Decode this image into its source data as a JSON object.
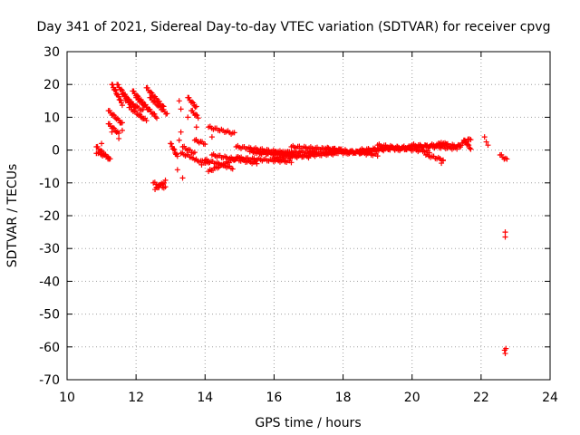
{
  "chart_data": {
    "type": "scatter",
    "title": "Day 341 of 2021, Sidereal Day-to-day VTEC variation (SDTVAR) for receiver cpvg",
    "xlabel": "GPS time / hours",
    "ylabel": "SDTVAR / TECUs",
    "xlim": [
      10,
      24
    ],
    "ylim": [
      -70,
      30
    ],
    "xticks": [
      10,
      12,
      14,
      16,
      18,
      20,
      22,
      24
    ],
    "yticks": [
      -70,
      -60,
      -50,
      -40,
      -30,
      -20,
      -10,
      0,
      10,
      20,
      30
    ],
    "grid": true,
    "marker": "plus",
    "color": "#ff0000",
    "series": [
      {
        "name": "cpvg",
        "segments": [
          {
            "x": [
              10.85,
              11.25
            ],
            "y": [
              1.0,
              -3.0
            ]
          },
          {
            "x": [
              10.9,
              11.2
            ],
            "y": [
              -1.0,
              -2.0
            ]
          },
          {
            "x": [
              11.2,
              11.6
            ],
            "y": [
              12.0,
              8.0
            ]
          },
          {
            "x": [
              11.2,
              11.5
            ],
            "y": [
              8.0,
              5.0
            ]
          },
          {
            "x": [
              11.3,
              11.6
            ],
            "y": [
              20.0,
              14.0
            ]
          },
          {
            "x": [
              11.45,
              11.8
            ],
            "y": [
              20.0,
              15.0
            ]
          },
          {
            "x": [
              11.6,
              12.0
            ],
            "y": [
              17.0,
              13.0
            ]
          },
          {
            "x": [
              11.7,
              12.2
            ],
            "y": [
              15.0,
              12.0
            ]
          },
          {
            "x": [
              11.8,
              12.3
            ],
            "y": [
              13.0,
              9.0
            ]
          },
          {
            "x": [
              11.9,
              12.4
            ],
            "y": [
              18.0,
              12.0
            ]
          },
          {
            "x": [
              12.0,
              12.6
            ],
            "y": [
              16.0,
              10.0
            ]
          },
          {
            "x": [
              12.3,
              12.8
            ],
            "y": [
              19.0,
              13.0
            ]
          },
          {
            "x": [
              12.4,
              12.9
            ],
            "y": [
              16.0,
              11.0
            ]
          },
          {
            "x": [
              12.5,
              12.85
            ],
            "y": [
              -10.0,
              -11.5
            ]
          },
          {
            "x": [
              12.55,
              12.85
            ],
            "y": [
              -12.0,
              -9.5
            ]
          },
          {
            "x": [
              13.0,
              13.2
            ],
            "y": [
              2.0,
              -2.0
            ]
          },
          {
            "x": [
              13.3,
              13.6
            ],
            "y": [
              -1.0,
              -2.0
            ]
          },
          {
            "x": [
              13.35,
              13.7
            ],
            "y": [
              1.0,
              -1.0
            ]
          },
          {
            "x": [
              13.5,
              13.75
            ],
            "y": [
              16.0,
              13.0
            ]
          },
          {
            "x": [
              13.6,
              13.8
            ],
            "y": [
              12.0,
              10.0
            ]
          },
          {
            "x": [
              13.7,
              14.0
            ],
            "y": [
              3.0,
              2.0
            ]
          },
          {
            "x": [
              13.7,
              14.1
            ],
            "y": [
              -3.0,
              -4.0
            ]
          },
          {
            "x": [
              14.1,
              14.85
            ],
            "y": [
              7.0,
              5.0
            ]
          },
          {
            "x": [
              14.0,
              14.8
            ],
            "y": [
              -3.0,
              -5.5
            ]
          },
          {
            "x": [
              14.1,
              15.0
            ],
            "y": [
              -6.5,
              -2.0
            ]
          },
          {
            "x": [
              14.2,
              15.5
            ],
            "y": [
              -1.5,
              -4.0
            ]
          },
          {
            "x": [
              14.9,
              16.5
            ],
            "y": [
              1.0,
              -1.0
            ]
          },
          {
            "x": [
              15.0,
              16.5
            ],
            "y": [
              -2.5,
              -3.5
            ]
          },
          {
            "x": [
              15.3,
              17.0
            ],
            "y": [
              -0.5,
              -2.0
            ]
          },
          {
            "x": [
              15.5,
              17.2
            ],
            "y": [
              -1.0,
              -0.5
            ]
          },
          {
            "x": [
              16.0,
              17.8
            ],
            "y": [
              -2.5,
              -1.0
            ]
          },
          {
            "x": [
              16.5,
              18.0
            ],
            "y": [
              1.0,
              0.0
            ]
          },
          {
            "x": [
              17.0,
              18.8
            ],
            "y": [
              -1.0,
              -0.5
            ]
          },
          {
            "x": [
              17.5,
              19.0
            ],
            "y": [
              0.5,
              -1.5
            ]
          },
          {
            "x": [
              18.0,
              19.5
            ],
            "y": [
              -1.0,
              0.5
            ]
          },
          {
            "x": [
              18.5,
              20.0
            ],
            "y": [
              0.0,
              1.0
            ]
          },
          {
            "x": [
              19.0,
              20.5
            ],
            "y": [
              1.5,
              -0.5
            ]
          },
          {
            "x": [
              19.5,
              21.0
            ],
            "y": [
              0.0,
              2.0
            ]
          },
          {
            "x": [
              20.0,
              21.3
            ],
            "y": [
              1.5,
              0.5
            ]
          },
          {
            "x": [
              20.4,
              20.9
            ],
            "y": [
              -1.5,
              -3.0
            ]
          },
          {
            "x": [
              20.8,
              21.4
            ],
            "y": [
              2.0,
              1.0
            ]
          },
          {
            "x": [
              21.3,
              21.7
            ],
            "y": [
              1.0,
              3.5
            ]
          },
          {
            "x": [
              21.5,
              21.7
            ],
            "y": [
              3.0,
              0.5
            ]
          },
          {
            "x": [
              22.55,
              22.75
            ],
            "y": [
              -1.5,
              -3.0
            ]
          }
        ],
        "points": [
          [
            10.85,
            -1.0
          ],
          [
            11.0,
            2.0
          ],
          [
            11.3,
            5.5
          ],
          [
            11.5,
            3.5
          ],
          [
            11.6,
            6.0
          ],
          [
            12.15,
            10.0
          ],
          [
            13.25,
            15.0
          ],
          [
            13.3,
            12.5
          ],
          [
            13.2,
            -6.0
          ],
          [
            13.35,
            -8.5
          ],
          [
            13.3,
            5.5
          ],
          [
            13.25,
            3.0
          ],
          [
            13.5,
            10.0
          ],
          [
            13.75,
            7.0
          ],
          [
            13.9,
            -4.5
          ],
          [
            13.65,
            -2.5
          ],
          [
            14.2,
            4.0
          ],
          [
            20.85,
            -4.0
          ],
          [
            20.9,
            -3.2
          ],
          [
            22.1,
            4.0
          ],
          [
            22.15,
            2.5
          ],
          [
            22.2,
            1.5
          ],
          [
            22.7,
            -25.0
          ],
          [
            22.7,
            -26.5
          ],
          [
            22.72,
            -60.5
          ],
          [
            22.7,
            -62.0
          ],
          [
            22.68,
            -61.0
          ]
        ]
      }
    ]
  }
}
